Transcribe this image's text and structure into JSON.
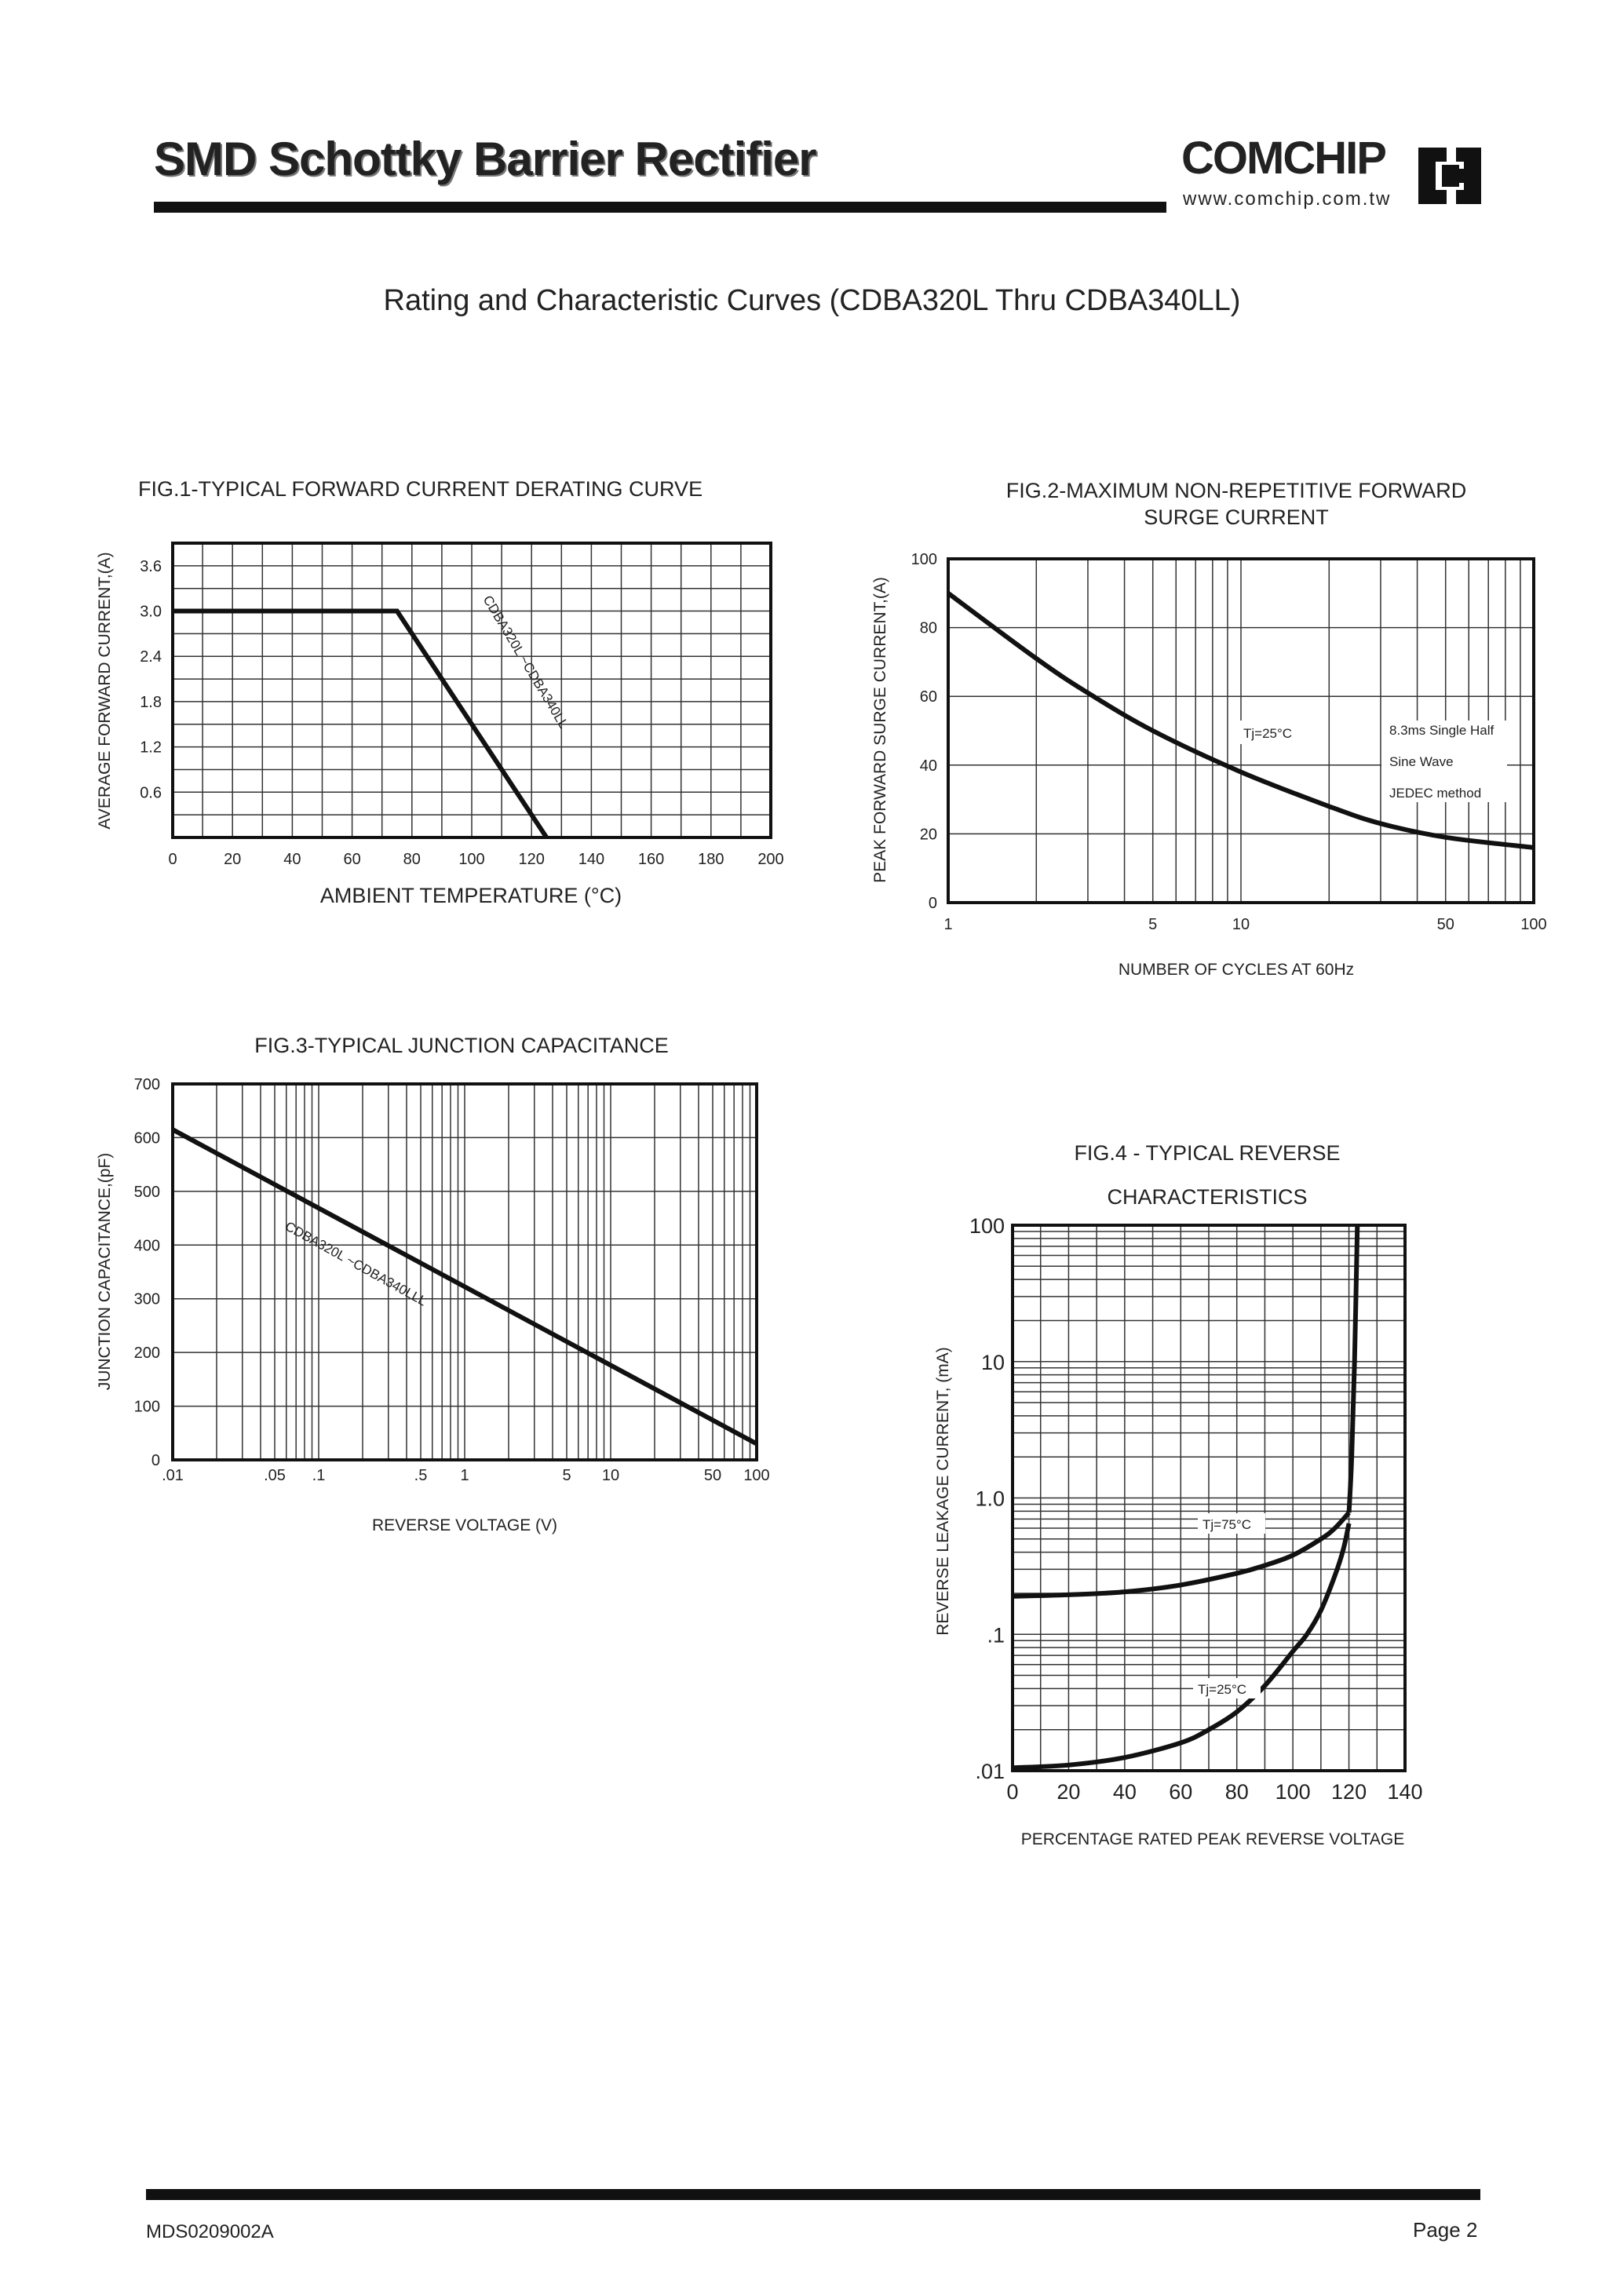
{
  "header": {
    "title": "SMD Schottky Barrier Rectifier",
    "logo_name": "COMCHIP",
    "logo_url": "www.comchip.com.tw"
  },
  "section_title": "Rating and Characteristic Curves (CDBA320L Thru CDBA340LL)",
  "footer": {
    "doc_number": "MDS0209002A",
    "page": "Page 2"
  },
  "chart_data": [
    {
      "id": "fig1",
      "type": "line",
      "title": "FIG.1-TYPICAL FORWARD CURRENT DERATING CURVE",
      "xlabel": "AMBIENT TEMPERATURE (°C)",
      "ylabel": "AVERAGE FORWARD CURRENT,(A)",
      "xlim": [
        0,
        200
      ],
      "ylim": [
        0,
        3.9
      ],
      "x_ticks": [
        0,
        20,
        40,
        60,
        80,
        100,
        120,
        140,
        160,
        180,
        200
      ],
      "x_tick_labels": [
        "0",
        "20",
        "40",
        "60",
        "80",
        "100",
        "120",
        "140",
        "160",
        "180",
        "200"
      ],
      "y_ticks": [
        0.6,
        1.2,
        1.8,
        2.4,
        3.0,
        3.6
      ],
      "y_tick_labels": [
        "0.6",
        "1.2",
        "1.8",
        "2.4",
        "3.0",
        "3.6"
      ],
      "grid": true,
      "series": [
        {
          "name": "CDBA320L ~CDBA340LL",
          "x": [
            0,
            75,
            125
          ],
          "y": [
            3.0,
            3.0,
            0
          ]
        }
      ]
    },
    {
      "id": "fig2",
      "type": "line",
      "title_lines": [
        "FIG.2-MAXIMUM NON-REPETITIVE FORWARD",
        "SURGE CURRENT"
      ],
      "xlabel": "NUMBER OF CYCLES AT 60Hz",
      "ylabel": "PEAK FORWARD SURGE CURRENT,(A)",
      "x_scale": "log",
      "xlim": [
        1,
        100
      ],
      "ylim": [
        0,
        100
      ],
      "x_tick_labels": [
        "1",
        "5",
        "10",
        "50",
        "100"
      ],
      "x_ticks": [
        1,
        5,
        10,
        50,
        100
      ],
      "y_ticks": [
        0,
        20,
        40,
        60,
        80,
        100
      ],
      "y_tick_labels": [
        "0",
        "20",
        "40",
        "60",
        "80",
        "100"
      ],
      "grid": true,
      "annotations": [
        "Tj=25°C",
        "8.3ms Single Half",
        "Sine Wave",
        "JEDEC method"
      ],
      "series": [
        {
          "x": [
            1,
            2,
            3,
            5,
            10,
            20,
            30,
            50,
            100
          ],
          "y": [
            90,
            71,
            61,
            50,
            38,
            28,
            23,
            19,
            16
          ]
        }
      ]
    },
    {
      "id": "fig3",
      "type": "line",
      "title": "FIG.3-TYPICAL JUNCTION CAPACITANCE",
      "xlabel": "REVERSE VOLTAGE (V)",
      "ylabel": "JUNCTION CAPACITANCE,(pF)",
      "x_scale": "log",
      "xlim": [
        0.01,
        100
      ],
      "ylim": [
        0,
        700
      ],
      "x_ticks": [
        0.01,
        0.05,
        0.1,
        0.5,
        1,
        5,
        10,
        50,
        100
      ],
      "x_tick_labels": [
        ".01",
        ".05",
        ".1",
        ".5",
        "1",
        "5",
        "10",
        "50",
        "100"
      ],
      "y_ticks": [
        0,
        100,
        200,
        300,
        400,
        500,
        600,
        700
      ],
      "y_tick_labels": [
        "0",
        "100",
        "200",
        "300",
        "400",
        "500",
        "600",
        "700"
      ],
      "grid": true,
      "series": [
        {
          "name": "CDBA320L ~CDBA340LLL",
          "x": [
            0.01,
            100
          ],
          "y": [
            615,
            30
          ]
        }
      ]
    },
    {
      "id": "fig4",
      "type": "line",
      "title_lines": [
        "FIG.4 - TYPICAL REVERSE",
        "CHARACTERISTICS"
      ],
      "xlabel": "PERCENTAGE RATED PEAK REVERSE VOLTAGE",
      "ylabel": "REVERSE LEAKAGE CURRENT, (mA)",
      "y_scale": "log",
      "xlim": [
        0,
        140
      ],
      "ylim": [
        0.01,
        100
      ],
      "x_ticks": [
        0,
        20,
        40,
        60,
        80,
        100,
        120,
        140
      ],
      "x_tick_labels": [
        "0",
        "20",
        "40",
        "60",
        "80",
        "100",
        "120",
        "140"
      ],
      "y_ticks": [
        0.01,
        0.1,
        1,
        10,
        100
      ],
      "y_tick_labels": [
        ".01",
        ".1",
        "1.0",
        "10",
        "100"
      ],
      "grid": true,
      "series": [
        {
          "name": "Tj=75°C",
          "x": [
            0,
            20,
            40,
            60,
            80,
            90,
            100,
            110,
            115,
            120
          ],
          "y": [
            0.19,
            0.195,
            0.205,
            0.23,
            0.28,
            0.32,
            0.38,
            0.5,
            0.6,
            0.78
          ]
        },
        {
          "name": "Tj=25°C",
          "x": [
            0,
            20,
            40,
            60,
            70,
            80,
            90,
            100,
            105,
            110,
            115,
            118,
            120
          ],
          "y": [
            0.0105,
            0.011,
            0.0125,
            0.016,
            0.02,
            0.027,
            0.042,
            0.075,
            0.1,
            0.15,
            0.27,
            0.42,
            0.65
          ]
        },
        {
          "name": "",
          "x": [
            120,
            121,
            122,
            123
          ],
          "y": [
            0.78,
            2,
            10,
            100
          ]
        }
      ]
    }
  ]
}
